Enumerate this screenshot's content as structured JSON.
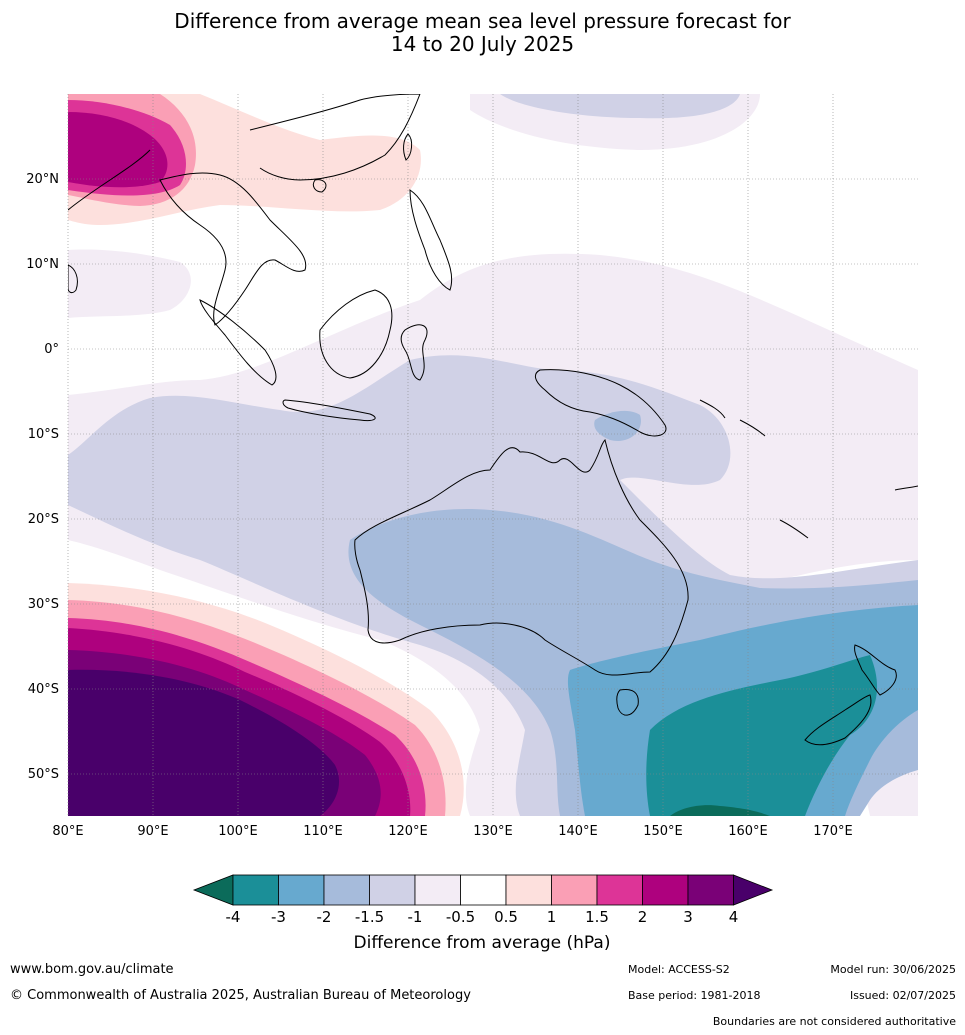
{
  "title": {
    "line1": "Difference from average mean sea level pressure forecast for",
    "line2": "14 to 20 July 2025"
  },
  "map": {
    "lon_labels": [
      "80°E",
      "90°E",
      "100°E",
      "110°E",
      "120°E",
      "130°E",
      "140°E",
      "150°E",
      "160°E",
      "170°E"
    ],
    "lat_labels": [
      "20°N",
      "10°N",
      "0°",
      "10°S",
      "20°S",
      "30°S",
      "40°S",
      "50°S"
    ]
  },
  "colorbar": {
    "ticks": [
      "-4",
      "-3",
      "-2",
      "-1.5",
      "-1",
      "-0.5",
      "0.5",
      "1",
      "1.5",
      "2",
      "3",
      "4"
    ],
    "label": "Difference from average (hPa)",
    "colors": {
      "lt_-4": "#0b6b5a",
      "-4_-3": "#1b8f98",
      "-3_-2": "#67a9cf",
      "-2_-1.5": "#a6bbdb",
      "-1.5_-1": "#d0d1e6",
      "-1_-0.5": "#f3ecf5",
      "-0.5_0.5": "#ffffff",
      "0.5_1": "#fde0dd",
      "1_1.5": "#fa9fb5",
      "1.5_2": "#dd3497",
      "2_3": "#ae017e",
      "3_4": "#7a0177",
      "gt_4": "#49006a"
    }
  },
  "footer": {
    "url": "www.bom.gov.au/climate",
    "copyright": "© Commonwealth of Australia 2025, Australian Bureau of Meteorology",
    "model": "Model: ACCESS-S2",
    "base_period": "Base period: 1981-2018",
    "model_run": "Model run: 30/06/2025",
    "issued": "Issued: 02/07/2025",
    "disclaimer": "Boundaries are not considered authoritative"
  }
}
